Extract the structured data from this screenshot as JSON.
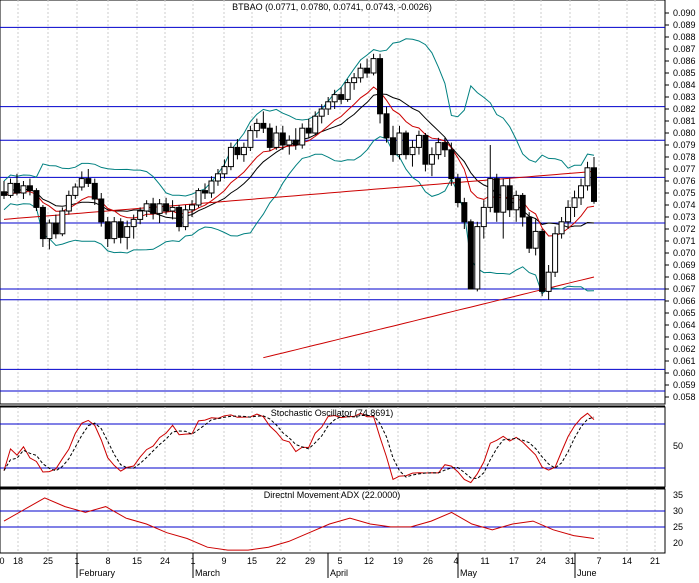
{
  "main": {
    "title": "BTBAO (0.0771, 0.0780, 0.0741, 0.0743, -0.0026)",
    "y_ticks": [
      "0.090",
      "0.089",
      "0.088",
      "0.087",
      "0.086",
      "0.085",
      "0.084",
      "0.083",
      "0.082",
      "0.081",
      "0.080",
      "0.079",
      "0.078",
      "0.077",
      "0.076",
      "0.075",
      "0.074",
      "0.073",
      "0.072",
      "0.071",
      "0.070",
      "0.069",
      "0.068",
      "0.067",
      "0.066",
      "0.065",
      "0.064",
      "0.063",
      "0.062",
      "0.061",
      "0.060",
      "0.059",
      "0.058"
    ],
    "hlines": [
      0.0888,
      0.0822,
      0.0794,
      0.0763,
      0.0725,
      0.067,
      0.0661,
      0.0603,
      0.0585
    ]
  },
  "stoch": {
    "title": "Stochastic Oscillator (74.8691)",
    "y_ticks": [
      "50"
    ]
  },
  "adx": {
    "title": "Directnl Movement ADX (22.0000)",
    "y_ticks": [
      "35",
      "30",
      "25",
      "20"
    ]
  },
  "x_axis": {
    "day_ticks": [
      "0",
      "18",
      "25",
      "1",
      "8",
      "15",
      "24",
      "1",
      "9",
      "15",
      "22",
      "29",
      "5",
      "12",
      "19",
      "26",
      "4",
      "11",
      "17",
      "24",
      "31",
      "7",
      "14",
      "21"
    ],
    "months": [
      "February",
      "March",
      "April",
      "May",
      "June"
    ]
  },
  "chart_data": {
    "type": "candlestick",
    "title": "BTBAO (0.0771, 0.0780, 0.0741, 0.0743, -0.0026)",
    "last": {
      "open": 0.0771,
      "high": 0.078,
      "low": 0.0741,
      "close": 0.0743,
      "change": -0.0026
    },
    "ylim": [
      0.0575,
      0.0905
    ],
    "candles": [
      [
        0.0751,
        0.076,
        0.0745,
        0.0748
      ],
      [
        0.0748,
        0.0762,
        0.0746,
        0.0758
      ],
      [
        0.0758,
        0.0766,
        0.0748,
        0.075
      ],
      [
        0.075,
        0.076,
        0.0745,
        0.0756
      ],
      [
        0.0756,
        0.0762,
        0.0748,
        0.0752
      ],
      [
        0.0752,
        0.0754,
        0.0735,
        0.0738
      ],
      [
        0.0738,
        0.074,
        0.0705,
        0.0712
      ],
      [
        0.0712,
        0.0728,
        0.0703,
        0.0725
      ],
      [
        0.0725,
        0.0732,
        0.0712,
        0.0716
      ],
      [
        0.0716,
        0.0738,
        0.0714,
        0.0735
      ],
      [
        0.0735,
        0.0752,
        0.0732,
        0.0748
      ],
      [
        0.0748,
        0.0758,
        0.0745,
        0.0755
      ],
      [
        0.0755,
        0.0768,
        0.0752,
        0.0762
      ],
      [
        0.0762,
        0.077,
        0.0755,
        0.0758
      ],
      [
        0.0758,
        0.0762,
        0.074,
        0.0745
      ],
      [
        0.0745,
        0.075,
        0.0722,
        0.0726
      ],
      [
        0.0726,
        0.073,
        0.0705,
        0.0712
      ],
      [
        0.0712,
        0.073,
        0.0708,
        0.0726
      ],
      [
        0.0726,
        0.0729,
        0.0708,
        0.0713
      ],
      [
        0.0713,
        0.0727,
        0.0703,
        0.0722
      ],
      [
        0.0722,
        0.0732,
        0.0712,
        0.0728
      ],
      [
        0.0728,
        0.0738,
        0.0724,
        0.0735
      ],
      [
        0.0735,
        0.0744,
        0.073,
        0.0741
      ],
      [
        0.0741,
        0.0746,
        0.0728,
        0.0733
      ],
      [
        0.0733,
        0.0745,
        0.0725,
        0.0741
      ],
      [
        0.0741,
        0.0746,
        0.0732,
        0.0735
      ],
      [
        0.0735,
        0.0744,
        0.0728,
        0.0738
      ],
      [
        0.0738,
        0.074,
        0.0718,
        0.0722
      ],
      [
        0.0722,
        0.074,
        0.0719,
        0.0736
      ],
      [
        0.0736,
        0.0744,
        0.073,
        0.074
      ],
      [
        0.074,
        0.0754,
        0.0738,
        0.0752
      ],
      [
        0.0752,
        0.0758,
        0.0745,
        0.075
      ],
      [
        0.075,
        0.0764,
        0.0746,
        0.076
      ],
      [
        0.076,
        0.077,
        0.0756,
        0.0766
      ],
      [
        0.0766,
        0.0778,
        0.0762,
        0.0772
      ],
      [
        0.0772,
        0.0792,
        0.0769,
        0.0788
      ],
      [
        0.0788,
        0.0795,
        0.0778,
        0.0782
      ],
      [
        0.0782,
        0.0792,
        0.0776,
        0.0788
      ],
      [
        0.0788,
        0.0806,
        0.0785,
        0.0802
      ],
      [
        0.0802,
        0.0812,
        0.0796,
        0.0808
      ],
      [
        0.0808,
        0.0818,
        0.08,
        0.0804
      ],
      [
        0.0804,
        0.0808,
        0.0785,
        0.0788
      ],
      [
        0.0788,
        0.0806,
        0.0786,
        0.08
      ],
      [
        0.08,
        0.0806,
        0.0786,
        0.079
      ],
      [
        0.079,
        0.0798,
        0.0782,
        0.0794
      ],
      [
        0.0794,
        0.0804,
        0.0786,
        0.079
      ],
      [
        0.079,
        0.0808,
        0.0787,
        0.0804
      ],
      [
        0.0804,
        0.0812,
        0.0796,
        0.08
      ],
      [
        0.08,
        0.0818,
        0.0798,
        0.0814
      ],
      [
        0.0814,
        0.0824,
        0.0808,
        0.082
      ],
      [
        0.082,
        0.083,
        0.0815,
        0.0826
      ],
      [
        0.0826,
        0.0836,
        0.082,
        0.0832
      ],
      [
        0.0832,
        0.0838,
        0.0824,
        0.0828
      ],
      [
        0.0828,
        0.0845,
        0.0826,
        0.0842
      ],
      [
        0.0842,
        0.085,
        0.0836,
        0.0846
      ],
      [
        0.0846,
        0.0858,
        0.0842,
        0.0854
      ],
      [
        0.0854,
        0.0862,
        0.0846,
        0.085
      ],
      [
        0.085,
        0.0866,
        0.0848,
        0.0862
      ],
      [
        0.0862,
        0.0866,
        0.0808,
        0.0816
      ],
      [
        0.0816,
        0.0822,
        0.0792,
        0.0796
      ],
      [
        0.0796,
        0.0806,
        0.0776,
        0.0782
      ],
      [
        0.0782,
        0.0806,
        0.0778,
        0.08
      ],
      [
        0.08,
        0.0802,
        0.0778,
        0.0782
      ],
      [
        0.0782,
        0.0794,
        0.0772,
        0.0788
      ],
      [
        0.0788,
        0.0802,
        0.0782,
        0.0798
      ],
      [
        0.0798,
        0.08,
        0.0768,
        0.0774
      ],
      [
        0.0774,
        0.0788,
        0.0764,
        0.0782
      ],
      [
        0.0782,
        0.0796,
        0.0778,
        0.0792
      ],
      [
        0.0792,
        0.0796,
        0.078,
        0.0786
      ],
      [
        0.0786,
        0.0792,
        0.0756,
        0.0762
      ],
      [
        0.0762,
        0.0766,
        0.0738,
        0.0742
      ],
      [
        0.0742,
        0.0746,
        0.072,
        0.0726
      ],
      [
        0.0726,
        0.0728,
        0.067,
        0.067
      ],
      [
        0.067,
        0.0726,
        0.0668,
        0.0722
      ],
      [
        0.0722,
        0.0744,
        0.0712,
        0.0738
      ],
      [
        0.0738,
        0.079,
        0.0734,
        0.0762
      ],
      [
        0.0762,
        0.0766,
        0.0726,
        0.0734
      ],
      [
        0.0734,
        0.0762,
        0.0712,
        0.0756
      ],
      [
        0.0756,
        0.0762,
        0.073,
        0.0736
      ],
      [
        0.0736,
        0.0752,
        0.0726,
        0.0748
      ],
      [
        0.0748,
        0.075,
        0.0722,
        0.073
      ],
      [
        0.073,
        0.0734,
        0.07,
        0.0704
      ],
      [
        0.0704,
        0.0728,
        0.0698,
        0.0718
      ],
      [
        0.0718,
        0.072,
        0.0664,
        0.0668
      ],
      [
        0.0668,
        0.069,
        0.0661,
        0.0684
      ],
      [
        0.0684,
        0.0722,
        0.068,
        0.0716
      ],
      [
        0.0716,
        0.073,
        0.0712,
        0.0726
      ],
      [
        0.0726,
        0.0744,
        0.072,
        0.0738
      ],
      [
        0.0738,
        0.0752,
        0.073,
        0.0746
      ],
      [
        0.0746,
        0.0762,
        0.074,
        0.0756
      ],
      [
        0.0756,
        0.0776,
        0.0752,
        0.0771
      ],
      [
        0.0771,
        0.078,
        0.0741,
        0.0743
      ]
    ],
    "moving_averages_and_bands_note": "overlays: 20-period SMA (black), EMA (red), long-term MA (red, 200-day), Bollinger bands (teal)"
  }
}
